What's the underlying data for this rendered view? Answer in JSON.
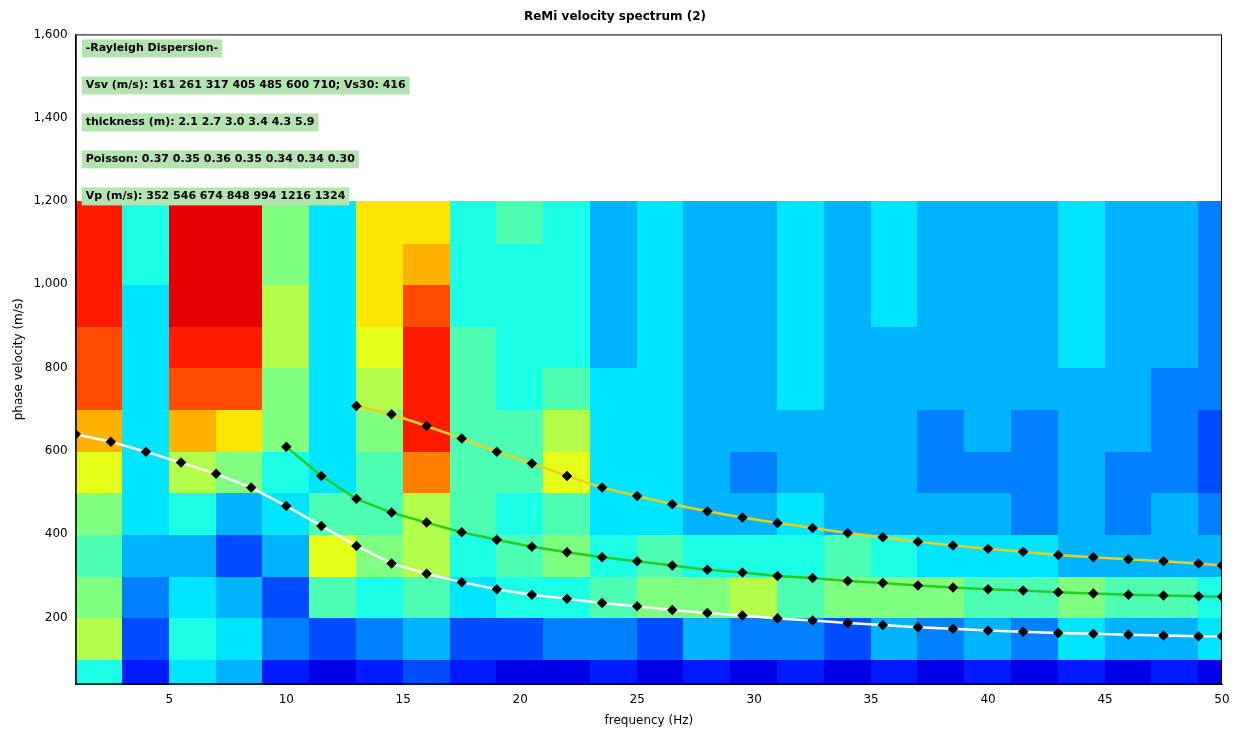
{
  "chart_data": {
    "type": "line",
    "title": "ReMi velocity spectrum (2)",
    "x_label": "frequency (Hz)",
    "y_label": "phase velocity (m/s)",
    "xlim": [
      1,
      50
    ],
    "xticks": [
      5,
      10,
      15,
      20,
      25,
      30,
      35,
      40,
      45,
      50
    ],
    "ylim": [
      40,
      1600
    ],
    "yticks": [
      200,
      400,
      600,
      800,
      1000,
      1200,
      1400,
      1600
    ],
    "grid": false,
    "annotations": [
      "-Rayleigh Dispersion-",
      "Vsv (m/s): 161 261 317 405 485 600 710; Vs30: 416",
      "thickness (m): 2.1 2.7 3.0 3.4 4.3 5.9",
      "Poisson: 0.37 0.35 0.36 0.35 0.34 0.34 0.30",
      "Vp (m/s): 352 546 674 848 994 1216 1324"
    ],
    "heatmap": {
      "x_edges": [
        1,
        3,
        5,
        7,
        9,
        11,
        13,
        15,
        17,
        19,
        21,
        23,
        25,
        27,
        29,
        31,
        33,
        35,
        37,
        39,
        41,
        43,
        45,
        47,
        49,
        50
      ],
      "y_edges": [
        40,
        100,
        200,
        300,
        400,
        500,
        600,
        700,
        800,
        900,
        1000,
        1100,
        1200
      ],
      "zlim": [
        0,
        1
      ],
      "z": [
        [
          0.4,
          0.15,
          0.35,
          0.3,
          0.15,
          0.1,
          0.15,
          0.2,
          0.15,
          0.1,
          0.1,
          0.15,
          0.1,
          0.15,
          0.1,
          0.15,
          0.1,
          0.15,
          0.1,
          0.15,
          0.1,
          0.15,
          0.1,
          0.15,
          0.1
        ],
        [
          0.55,
          0.2,
          0.4,
          0.35,
          0.25,
          0.2,
          0.25,
          0.3,
          0.2,
          0.2,
          0.25,
          0.25,
          0.2,
          0.3,
          0.25,
          0.25,
          0.2,
          0.3,
          0.25,
          0.3,
          0.25,
          0.35,
          0.3,
          0.3,
          0.35
        ],
        [
          0.5,
          0.25,
          0.35,
          0.3,
          0.2,
          0.45,
          0.4,
          0.45,
          0.35,
          0.4,
          0.4,
          0.45,
          0.5,
          0.5,
          0.55,
          0.45,
          0.5,
          0.5,
          0.5,
          0.45,
          0.45,
          0.5,
          0.45,
          0.45,
          0.4
        ],
        [
          0.45,
          0.3,
          0.3,
          0.2,
          0.3,
          0.6,
          0.5,
          0.55,
          0.4,
          0.45,
          0.5,
          0.4,
          0.45,
          0.4,
          0.4,
          0.4,
          0.45,
          0.4,
          0.35,
          0.35,
          0.35,
          0.3,
          0.3,
          0.3,
          0.3
        ],
        [
          0.5,
          0.35,
          0.4,
          0.3,
          0.35,
          0.45,
          0.45,
          0.55,
          0.45,
          0.4,
          0.45,
          0.35,
          0.35,
          0.3,
          0.3,
          0.35,
          0.3,
          0.3,
          0.3,
          0.3,
          0.25,
          0.3,
          0.25,
          0.3,
          0.25
        ],
        [
          0.6,
          0.35,
          0.55,
          0.5,
          0.4,
          0.35,
          0.45,
          0.75,
          0.45,
          0.45,
          0.6,
          0.35,
          0.35,
          0.3,
          0.25,
          0.3,
          0.3,
          0.3,
          0.25,
          0.25,
          0.25,
          0.3,
          0.25,
          0.25,
          0.2
        ],
        [
          0.7,
          0.35,
          0.7,
          0.65,
          0.5,
          0.35,
          0.5,
          0.85,
          0.45,
          0.45,
          0.55,
          0.35,
          0.35,
          0.3,
          0.3,
          0.3,
          0.3,
          0.3,
          0.25,
          0.3,
          0.25,
          0.3,
          0.3,
          0.25,
          0.2
        ],
        [
          0.8,
          0.35,
          0.8,
          0.8,
          0.5,
          0.35,
          0.55,
          0.85,
          0.45,
          0.4,
          0.45,
          0.35,
          0.35,
          0.3,
          0.3,
          0.35,
          0.3,
          0.3,
          0.3,
          0.3,
          0.3,
          0.3,
          0.3,
          0.25,
          0.25
        ],
        [
          0.8,
          0.35,
          0.85,
          0.85,
          0.55,
          0.35,
          0.6,
          0.85,
          0.45,
          0.4,
          0.4,
          0.3,
          0.35,
          0.3,
          0.3,
          0.35,
          0.3,
          0.3,
          0.3,
          0.3,
          0.3,
          0.35,
          0.3,
          0.3,
          0.25
        ],
        [
          0.85,
          0.35,
          0.9,
          0.9,
          0.55,
          0.35,
          0.65,
          0.8,
          0.4,
          0.4,
          0.4,
          0.3,
          0.35,
          0.3,
          0.3,
          0.35,
          0.3,
          0.35,
          0.3,
          0.3,
          0.3,
          0.35,
          0.3,
          0.3,
          0.25
        ],
        [
          0.85,
          0.4,
          0.9,
          0.9,
          0.5,
          0.35,
          0.65,
          0.7,
          0.4,
          0.4,
          0.4,
          0.3,
          0.35,
          0.3,
          0.3,
          0.35,
          0.3,
          0.35,
          0.3,
          0.3,
          0.3,
          0.35,
          0.3,
          0.3,
          0.25
        ],
        [
          0.85,
          0.4,
          0.9,
          0.9,
          0.5,
          0.35,
          0.65,
          0.65,
          0.4,
          0.45,
          0.4,
          0.3,
          0.35,
          0.3,
          0.3,
          0.35,
          0.3,
          0.35,
          0.3,
          0.3,
          0.3,
          0.35,
          0.3,
          0.3,
          0.25
        ]
      ]
    },
    "series": [
      {
        "color": "#ffffff",
        "marker": "diamond",
        "line_style": "solid",
        "x": [
          1,
          2.5,
          4,
          5.5,
          7,
          8.5,
          10,
          11.5,
          13,
          14.5,
          16,
          17.5,
          19,
          20.5,
          22,
          23.5,
          25,
          26.5,
          28,
          29.5,
          31,
          32.5,
          34,
          35.5,
          37,
          38.5,
          40,
          41.5,
          43,
          44.5,
          46,
          47.5,
          49,
          50
        ],
        "values": [
          640,
          622,
          598,
          572,
          545,
          512,
          468,
          420,
          372,
          330,
          305,
          285,
          268,
          255,
          245,
          235,
          227,
          218,
          211,
          205,
          198,
          193,
          187,
          182,
          177,
          173,
          169,
          166,
          163,
          161,
          159,
          157,
          155,
          155
        ]
      },
      {
        "color": "#22cc22",
        "marker": "diamond",
        "line_style": "solid",
        "x": [
          10,
          11.5,
          13,
          14.5,
          16,
          17.5,
          19,
          20.5,
          22,
          23.5,
          25,
          26.5,
          28,
          29.5,
          31,
          32.5,
          34,
          35.5,
          37,
          38.5,
          40,
          41.5,
          43,
          44.5,
          46,
          47.5,
          49,
          50
        ],
        "values": [
          610,
          540,
          485,
          452,
          428,
          405,
          387,
          370,
          357,
          345,
          335,
          325,
          315,
          308,
          300,
          295,
          288,
          283,
          277,
          272,
          268,
          265,
          261,
          258,
          255,
          253,
          251,
          250
        ]
      },
      {
        "color": "#e8d020",
        "marker": "diamond",
        "line_style": "solid",
        "x": [
          13,
          14.5,
          16,
          17.5,
          19,
          20.5,
          22,
          23.5,
          25,
          26.5,
          28,
          29.5,
          31,
          32.5,
          34,
          35.5,
          37,
          38.5,
          40,
          41.5,
          43,
          44.5,
          46,
          47.5,
          49,
          50
        ],
        "values": [
          708,
          688,
          660,
          630,
          598,
          570,
          540,
          512,
          492,
          472,
          455,
          440,
          427,
          415,
          403,
          393,
          382,
          373,
          365,
          358,
          350,
          345,
          340,
          335,
          330,
          325
        ]
      }
    ]
  }
}
